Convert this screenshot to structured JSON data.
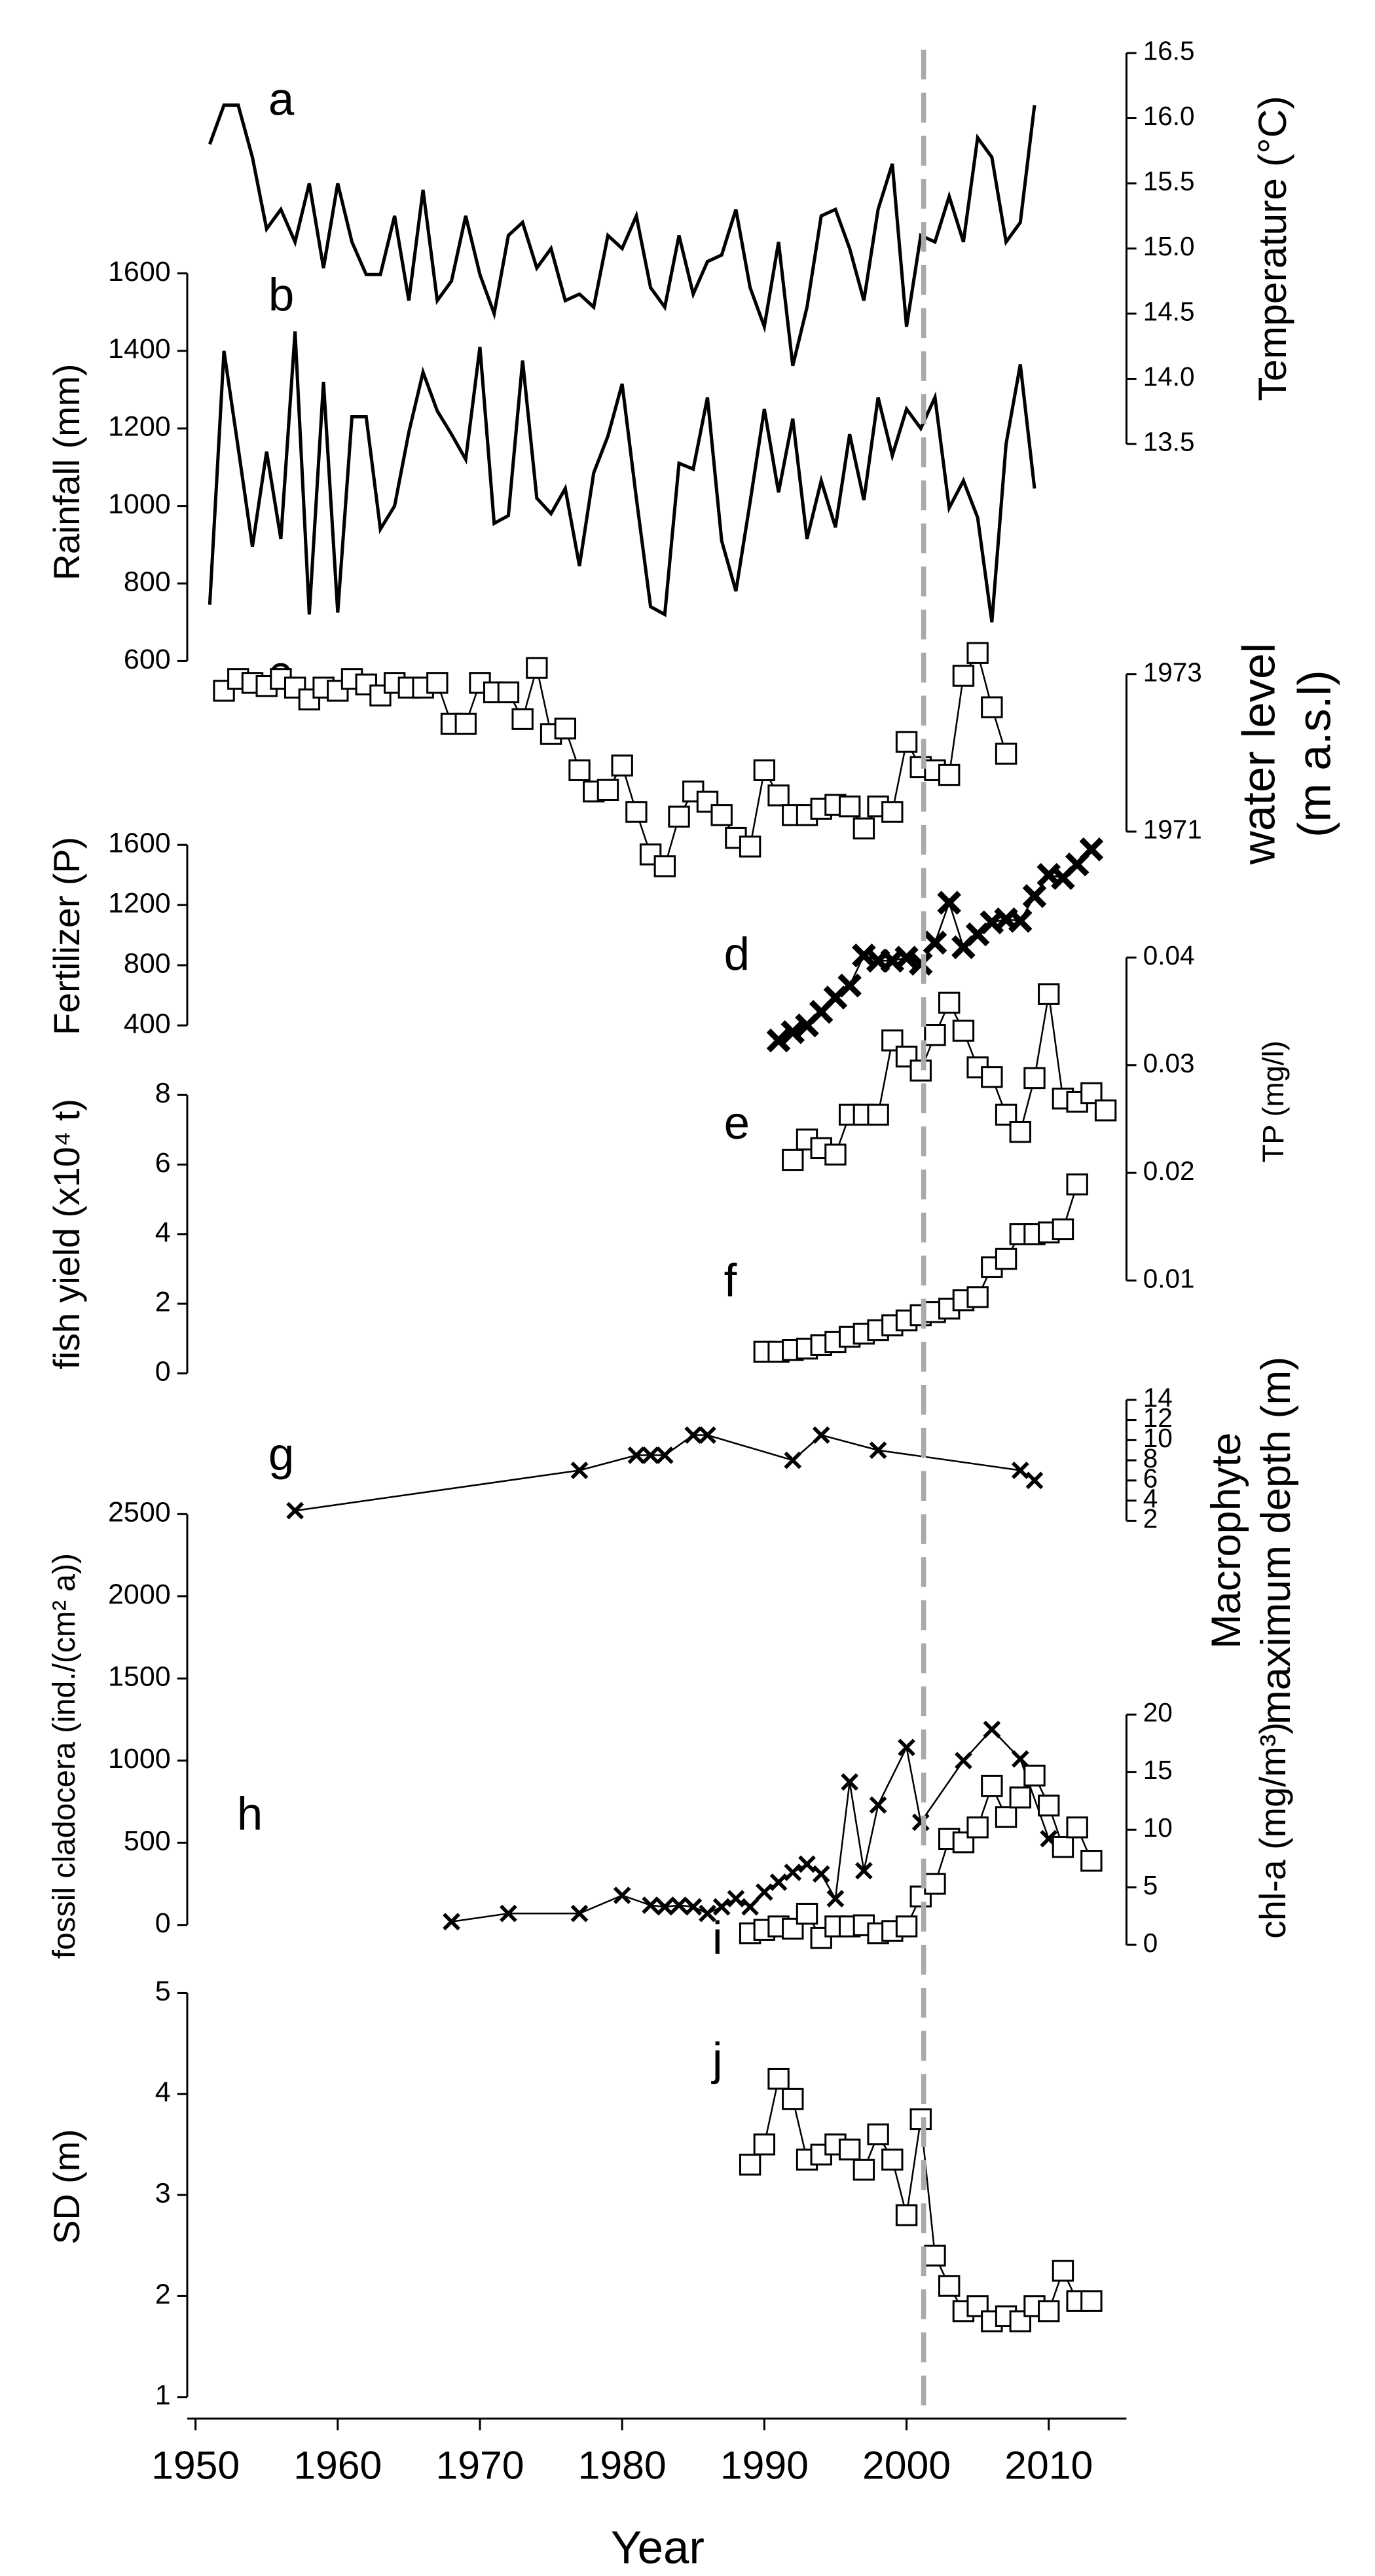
{
  "chart_data": [
    {
      "type": "line",
      "label": "a",
      "ylabel": "Temperature (°C)",
      "color": "#000000",
      "marker": "none",
      "ylim": [
        13.5,
        16.5
      ],
      "yticks": [
        13.5,
        14.0,
        14.5,
        15.0,
        15.5,
        16.0,
        16.5
      ],
      "ytick_labels": [
        "13.5",
        "14.0",
        "14.5",
        "15.0",
        "15.5",
        "16.0",
        "16.5"
      ],
      "x": [
        1951,
        1952,
        1953,
        1954,
        1955,
        1956,
        1957,
        1958,
        1959,
        1960,
        1961,
        1962,
        1963,
        1964,
        1965,
        1966,
        1967,
        1968,
        1969,
        1970,
        1971,
        1972,
        1973,
        1974,
        1975,
        1976,
        1977,
        1978,
        1979,
        1980,
        1981,
        1982,
        1983,
        1984,
        1985,
        1986,
        1987,
        1988,
        1989,
        1990,
        1991,
        1992,
        1993,
        1994,
        1995,
        1996,
        1997,
        1998,
        1999,
        2000,
        2001,
        2002,
        2003,
        2004,
        2005,
        2006,
        2007,
        2008,
        2009
      ],
      "values": [
        15.8,
        16.1,
        16.1,
        15.7,
        15.15,
        15.3,
        15.05,
        15.5,
        14.85,
        15.5,
        15.05,
        14.8,
        14.8,
        15.25,
        14.6,
        15.45,
        14.6,
        14.75,
        15.25,
        14.8,
        14.5,
        15.1,
        15.2,
        14.85,
        15.0,
        14.6,
        14.65,
        14.55,
        15.1,
        15.0,
        15.25,
        14.7,
        14.55,
        15.1,
        14.65,
        14.9,
        14.95,
        15.3,
        14.7,
        14.4,
        15.05,
        14.1,
        14.55,
        15.25,
        15.3,
        15.0,
        14.6,
        15.3,
        15.65,
        14.4,
        15.1,
        15.05,
        15.4,
        15.05,
        15.85,
        15.7,
        15.05,
        15.2,
        16.1
      ]
    },
    {
      "type": "line",
      "label": "b",
      "ylabel": "Rainfall (mm)",
      "color": "#000000",
      "marker": "none",
      "ylim": [
        600,
        1600
      ],
      "yticks": [
        600,
        800,
        1000,
        1200,
        1400,
        1600
      ],
      "x": [
        1951,
        1952,
        1953,
        1954,
        1955,
        1956,
        1957,
        1958,
        1959,
        1960,
        1961,
        1962,
        1963,
        1964,
        1965,
        1966,
        1967,
        1968,
        1969,
        1970,
        1971,
        1972,
        1973,
        1974,
        1975,
        1976,
        1977,
        1978,
        1979,
        1980,
        1981,
        1982,
        1983,
        1984,
        1985,
        1986,
        1987,
        1988,
        1989,
        1990,
        1991,
        1992,
        1993,
        1994,
        1995,
        1996,
        1997,
        1998,
        1999,
        2000,
        2001,
        2002,
        2003,
        2004,
        2005,
        2006,
        2007,
        2008,
        2009
      ],
      "values": [
        745,
        1400,
        1150,
        895,
        1140,
        915,
        1450,
        720,
        1320,
        725,
        1230,
        1230,
        940,
        1000,
        1190,
        1345,
        1245,
        1185,
        1120,
        1410,
        955,
        975,
        1375,
        1020,
        980,
        1045,
        845,
        1085,
        1180,
        1315,
        1020,
        740,
        720,
        1110,
        1095,
        1280,
        910,
        780,
        1010,
        1250,
        1035,
        1225,
        915,
        1065,
        945,
        1185,
        1015,
        1280,
        1130,
        1250,
        1200,
        1280,
        995,
        1065,
        970,
        700,
        1160,
        1365,
        1045
      ]
    },
    {
      "type": "line",
      "label": "c",
      "ylabel": [
        "water level",
        "(m a.s.l)"
      ],
      "color": "#000000",
      "marker": "square",
      "ylim": [
        1971,
        1973
      ],
      "yticks": [
        1971,
        1973
      ],
      "x": [
        1952,
        1953,
        1954,
        1955,
        1956,
        1957,
        1958,
        1959,
        1960,
        1961,
        1962,
        1963,
        1964,
        1965,
        1966,
        1967,
        1968,
        1969,
        1970,
        1971,
        1972,
        1973,
        1974,
        1975,
        1976,
        1977,
        1978,
        1979,
        1980,
        1981,
        1982,
        1983,
        1984,
        1985,
        1986,
        1987,
        1988,
        1989,
        1990,
        1991,
        1992,
        1993,
        1994,
        1995,
        1996,
        1997,
        1998,
        1999,
        2000,
        2001,
        2002,
        2003,
        2004,
        2005,
        2006,
        2007
      ],
      "values": [
        1972.79,
        1972.94,
        1972.89,
        1972.85,
        1972.94,
        1972.83,
        1972.68,
        1972.83,
        1972.79,
        1972.94,
        1972.87,
        1972.73,
        1972.89,
        1972.83,
        1972.83,
        1972.89,
        1972.37,
        1972.37,
        1972.89,
        1972.77,
        1972.77,
        1972.43,
        1973.08,
        1972.24,
        1972.31,
        1971.78,
        1971.51,
        1971.53,
        1971.84,
        1971.25,
        1970.71,
        1970.56,
        1971.19,
        1971.51,
        1971.38,
        1971.21,
        1970.92,
        1970.81,
        1971.78,
        1971.46,
        1971.21,
        1971.21,
        1971.29,
        1971.34,
        1971.32,
        1971.04,
        1971.32,
        1971.25,
        1972.14,
        1971.82,
        1971.78,
        1971.72,
        1972.98,
        1973.27,
        1972.58,
        1971.99
      ]
    },
    {
      "type": "line",
      "label": "d",
      "ylabel": "Fertilizer (P)",
      "color": "#000000",
      "marker": "x-bold",
      "ylim": [
        400,
        1600
      ],
      "yticks": [
        400,
        800,
        1200,
        1600
      ],
      "x": [
        1991,
        1992,
        1993,
        1994,
        1995,
        1996,
        1997,
        1998,
        1999,
        2000,
        2001,
        2002,
        2003,
        2004,
        2005,
        2006,
        2007,
        2008,
        2009,
        2010,
        2011,
        2012,
        2013
      ],
      "values": [
        300,
        355,
        400,
        490,
        585,
        665,
        865,
        830,
        830,
        850,
        810,
        950,
        1215,
        920,
        1005,
        1085,
        1105,
        1095,
        1260,
        1400,
        1380,
        1470,
        1570
      ]
    },
    {
      "type": "line",
      "label": "e",
      "ylabel": "TP (mg/l)",
      "color": "#000000",
      "marker": "square",
      "ylim": [
        0.01,
        0.04
      ],
      "yticks": [
        0.01,
        0.02,
        0.03,
        0.04
      ],
      "x": [
        1992,
        1993,
        1994,
        1995,
        1996,
        1997,
        1998,
        1999,
        2000,
        2001,
        2002,
        2003,
        2004,
        2005,
        2006,
        2007,
        2008,
        2009,
        2010,
        2011,
        2012,
        2013,
        2014
      ],
      "values": [
        0.0212,
        0.0231,
        0.0223,
        0.0217,
        0.0254,
        0.0254,
        0.0254,
        0.0323,
        0.0308,
        0.0295,
        0.0328,
        0.0358,
        0.0332,
        0.0298,
        0.0289,
        0.0254,
        0.0238,
        0.0288,
        0.0366,
        0.0269,
        0.0266,
        0.0274,
        0.0258
      ]
    },
    {
      "type": "line",
      "label": "f",
      "ylabel": "fish yield (x10⁴ t)",
      "color": "#000000",
      "marker": "square",
      "ylim": [
        0,
        8
      ],
      "yticks": [
        0,
        2,
        4,
        6,
        8
      ],
      "x": [
        1990,
        1991,
        1992,
        1993,
        1994,
        1995,
        1996,
        1997,
        1998,
        1999,
        2000,
        2001,
        2002,
        2003,
        2004,
        2005,
        2006,
        2007,
        2008,
        2009,
        2010,
        2011,
        2012
      ],
      "values": [
        0.62,
        0.62,
        0.67,
        0.71,
        0.81,
        0.9,
        1.05,
        1.14,
        1.24,
        1.38,
        1.52,
        1.67,
        1.76,
        1.86,
        2.1,
        2.19,
        3.05,
        3.29,
        4.0,
        4.0,
        4.05,
        4.14,
        5.43
      ]
    },
    {
      "type": "line",
      "label": "g",
      "ylabel": [
        "Macrophyte",
        "maximum depth (m)"
      ],
      "color": "#000000",
      "marker": "x",
      "ylim": [
        2,
        14
      ],
      "yticks": [
        2,
        4,
        6,
        8,
        10,
        12,
        14
      ],
      "x": [
        1957,
        1977,
        1981,
        1982,
        1983,
        1985,
        1986,
        1992,
        1994,
        1998,
        2008,
        2009
      ],
      "values": [
        3.0,
        7.0,
        8.5,
        8.5,
        8.5,
        10.5,
        10.5,
        8.0,
        10.5,
        9.0,
        7.0,
        6.0
      ]
    },
    {
      "type": "line",
      "label": "h",
      "ylabel": "fossil cladocera (ind./(cm² a))",
      "color": "#000000",
      "marker": "x",
      "ylim": [
        0,
        2500
      ],
      "yticks": [
        0,
        500,
        1000,
        1500,
        2000,
        2500
      ],
      "x": [
        1968,
        1972,
        1977,
        1980,
        1982,
        1983,
        1984,
        1985,
        1986,
        1987,
        1988,
        1989,
        1990,
        1991,
        1992,
        1993,
        1994,
        1995,
        1996,
        1997,
        1998,
        2000,
        2001,
        2004,
        2006,
        2008,
        2010
      ],
      "values": [
        20,
        70,
        70,
        180,
        120,
        110,
        120,
        110,
        70,
        110,
        160,
        110,
        200,
        260,
        320,
        370,
        310,
        160,
        870,
        330,
        730,
        1080,
        625,
        1000,
        1190,
        1010,
        525
      ]
    },
    {
      "type": "line",
      "label": "i",
      "ylabel": "chl-a (mg/m³)",
      "color": "#000000",
      "marker": "square",
      "ylim": [
        0,
        20
      ],
      "yticks": [
        0,
        5,
        10,
        15,
        20
      ],
      "x": [
        1989,
        1990,
        1991,
        1992,
        1993,
        1994,
        1995,
        1996,
        1997,
        1998,
        1999,
        2000,
        2001,
        2002,
        2003,
        2004,
        2005,
        2006,
        2007,
        2008,
        2009,
        2010,
        2011,
        2012,
        2013
      ],
      "values": [
        1.0,
        1.3,
        1.6,
        1.4,
        2.7,
        0.6,
        1.6,
        1.6,
        1.7,
        1.0,
        1.2,
        1.6,
        4.2,
        5.3,
        9.2,
        8.9,
        10.2,
        13.8,
        11.1,
        12.8,
        14.7,
        12.1,
        8.5,
        10.2,
        7.3
      ]
    },
    {
      "type": "line",
      "label": "j",
      "ylabel": "SD (m)",
      "color": "#000000",
      "marker": "square",
      "ylim": [
        1,
        5
      ],
      "yticks": [
        1,
        2,
        3,
        4,
        5
      ],
      "x": [
        1989,
        1990,
        1991,
        1992,
        1993,
        1994,
        1995,
        1996,
        1997,
        1998,
        1999,
        2000,
        2001,
        2002,
        2003,
        2004,
        2005,
        2006,
        2007,
        2008,
        2009,
        2010,
        2011,
        2012,
        2013
      ],
      "values": [
        3.3,
        3.5,
        4.15,
        3.95,
        3.35,
        3.4,
        3.5,
        3.45,
        3.25,
        3.6,
        3.35,
        2.8,
        3.75,
        2.4,
        2.1,
        1.85,
        1.9,
        1.75,
        1.8,
        1.75,
        1.9,
        1.85,
        2.25,
        1.95,
        1.95
      ],
      "xlabel": "Year",
      "xlim": [
        1950,
        2015
      ],
      "xticks": [
        1950,
        1960,
        1970,
        1980,
        1990,
        2000,
        2010
      ],
      "reference_line": {
        "x": 2001.2,
        "color": "#aaaaaa",
        "style": "dashed"
      }
    }
  ]
}
